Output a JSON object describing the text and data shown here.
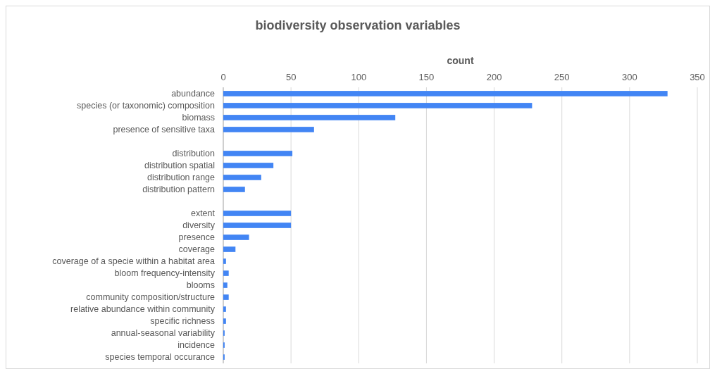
{
  "chart_data": {
    "type": "bar",
    "orientation": "horizontal",
    "title": "biodiversity observation variables",
    "xlabel": "count",
    "categories": [
      "abundance",
      "species (or taxonomic) composition",
      "biomass",
      "presence of sensitive taxa",
      null,
      "distribution",
      "distribution spatial",
      "distribution range",
      "distribution pattern",
      null,
      "extent",
      "diversity",
      "presence",
      "coverage",
      "coverage of a specie within a habitat area",
      "bloom frequency-intensity",
      "blooms",
      "community composition/structure",
      "relative abundance within community",
      "specific richness",
      "annual-seasonal variability",
      "incidence",
      "species temporal occurance"
    ],
    "values": [
      328,
      228,
      127,
      67,
      null,
      51,
      37,
      28,
      16,
      null,
      50,
      50,
      19,
      9,
      2,
      4,
      3,
      4,
      2,
      2,
      1,
      1,
      1
    ],
    "color": "#4285f4",
    "xlim": [
      0,
      350
    ],
    "xticks": [
      0,
      50,
      100,
      150,
      200,
      250,
      300,
      350
    ],
    "grid": "x"
  }
}
